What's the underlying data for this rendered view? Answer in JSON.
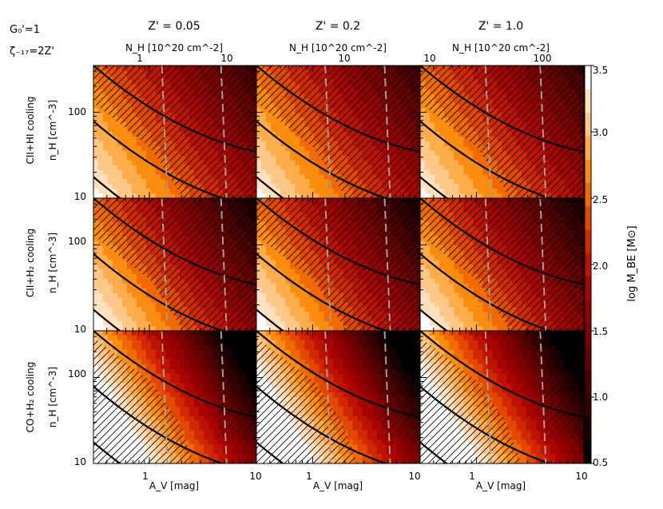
{
  "header": {
    "g0_label": "G₀'=1",
    "zeta_label": "ζ₋₁₇=2Z'"
  },
  "columns": [
    {
      "title": "Z' = 0.05",
      "nh_label": "N_H [10^20 cm^-2]",
      "top_ticks": [
        "1",
        "10"
      ]
    },
    {
      "title": "Z' = 0.2",
      "nh_label": "N_H [10^20 cm^-2]",
      "top_ticks": [
        "10"
      ]
    },
    {
      "title": "Z' = 1.0",
      "nh_label": "N_H [10^20 cm^-2]",
      "top_ticks": [
        "10",
        "100"
      ]
    }
  ],
  "rows": [
    {
      "label": "CII+HI cooling"
    },
    {
      "label": "CII+H₂ cooling"
    },
    {
      "label": "CO+H₂ cooling"
    }
  ],
  "y_axis": {
    "label": "n_H [cm^-3]",
    "ticks": [
      "100",
      "10"
    ]
  },
  "x_axis": {
    "label": "A_V [mag]",
    "ticks": [
      "1",
      "10"
    ]
  },
  "colorbar": {
    "label": "log M_BE [M⊙]",
    "ticks": [
      "3.5",
      "3.0",
      "2.5",
      "2.0",
      "1.5",
      "1.0",
      "0.5"
    ],
    "levels": [
      "#000000",
      "#1c0000",
      "#340000",
      "#4c0000",
      "#650000",
      "#7c0000",
      "#930000",
      "#a80400",
      "#bd1200",
      "#d12800",
      "#e24800",
      "#f06a00",
      "#fa8c10",
      "#ffad4a",
      "#ffc888",
      "#ffe1c0",
      "#ffffff"
    ]
  },
  "chart_data": {
    "type": "heatmap",
    "x_axis_label": "A_V [mag]",
    "x_scale": "log",
    "x_range": [
      0.3,
      10
    ],
    "y_axis_label": "n_H [cm^-3]",
    "y_scale": "log",
    "y_range": [
      10,
      350
    ],
    "colorbar_range": [
      0.5,
      3.5
    ],
    "panels": [
      {
        "row": "CII+HI cooling",
        "column": "Z' = 0.05",
        "dashed_av": [
          1.4,
          5.0
        ]
      },
      {
        "row": "CII+HI cooling",
        "column": "Z' = 0.2",
        "dashed_av": [
          1.4,
          5.0
        ]
      },
      {
        "row": "CII+HI cooling",
        "column": "Z' = 1.0",
        "dashed_av": [
          1.3,
          4.2
        ]
      },
      {
        "row": "CII+H₂ cooling",
        "column": "Z' = 0.05",
        "dashed_av": [
          1.4,
          5.0
        ]
      },
      {
        "row": "CII+H₂ cooling",
        "column": "Z' = 0.2",
        "dashed_av": [
          1.4,
          5.0
        ]
      },
      {
        "row": "CII+H₂ cooling",
        "column": "Z' = 1.0",
        "dashed_av": [
          1.3,
          4.2
        ]
      },
      {
        "row": "CO+H₂ cooling",
        "column": "Z' = 0.05",
        "dashed_av": [
          1.4,
          5.0
        ]
      },
      {
        "row": "CO+H₂ cooling",
        "column": "Z' = 0.2",
        "dashed_av": [
          1.4,
          5.0
        ]
      },
      {
        "row": "CO+H₂ cooling",
        "column": "Z' = 1.0",
        "dashed_av": [
          1.3,
          4.2
        ]
      }
    ]
  }
}
